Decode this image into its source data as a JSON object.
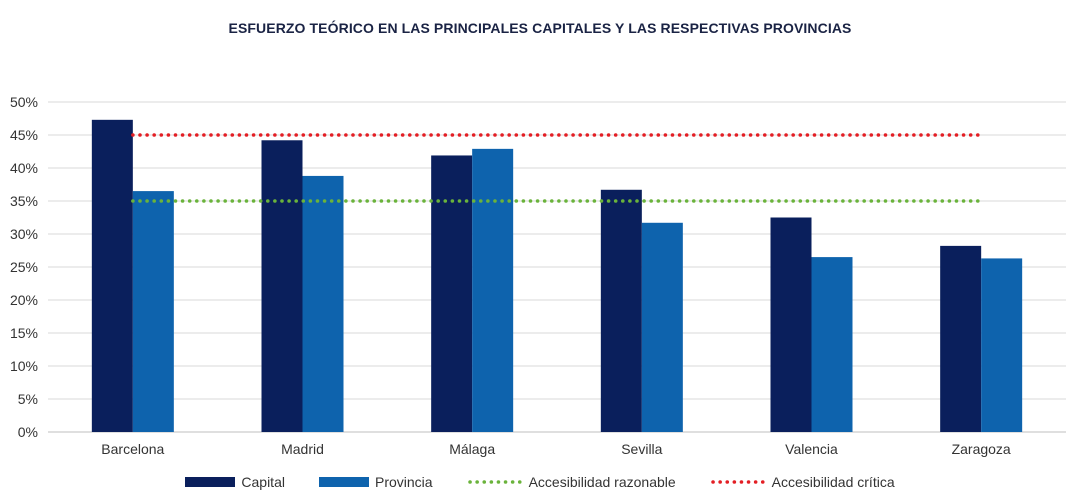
{
  "chart_data": {
    "type": "bar",
    "title": "ESFUERZO TEÓRICO EN LAS PRINCIPALES CAPITALES Y LAS RESPECTIVAS PROVINCIAS",
    "xlabel": "",
    "ylabel": "",
    "ylim": [
      0,
      50
    ],
    "y_ticks": [
      "0%",
      "5%",
      "10%",
      "15%",
      "20%",
      "25%",
      "30%",
      "35%",
      "40%",
      "45%",
      "50%"
    ],
    "y_tick_values": [
      0,
      5,
      10,
      15,
      20,
      25,
      30,
      35,
      40,
      45,
      50
    ],
    "categories": [
      "Barcelona",
      "Madrid",
      "Málaga",
      "Sevilla",
      "Valencia",
      "Zaragoza"
    ],
    "series": [
      {
        "name": "Capital",
        "color": "#0a1f5c",
        "values": [
          47.3,
          44.2,
          41.9,
          36.7,
          32.5,
          28.2
        ]
      },
      {
        "name": "Provincia",
        "color": "#0e63ad",
        "values": [
          36.5,
          38.8,
          42.9,
          31.7,
          26.5,
          26.3
        ]
      }
    ],
    "reference_lines": [
      {
        "name": "Accesibilidad razonable",
        "value": 35,
        "color": "#6ab33b",
        "style": "dotted"
      },
      {
        "name": "Accesibilidad crítica",
        "value": 45,
        "color": "#e31e24",
        "style": "dotted"
      }
    ],
    "grid": true,
    "legend_position": "bottom"
  }
}
